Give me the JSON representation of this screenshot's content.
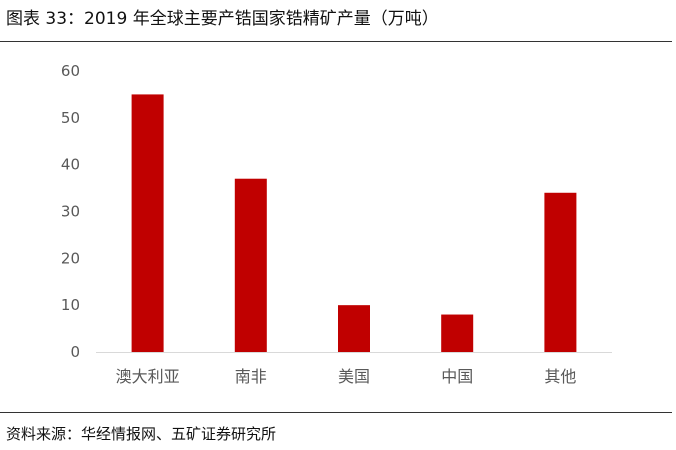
{
  "figure": {
    "title": "图表 33：2019 年全球主要产锆国家锆精矿产量（万吨）",
    "source": "资料来源：华经情报网、五矿证券研究所"
  },
  "colors": {
    "bar": "#c00000",
    "axis": "#d9d9d9",
    "text": "#595959"
  },
  "chart_data": {
    "type": "bar",
    "categories": [
      "澳大利亚",
      "南非",
      "美国",
      "中国",
      "其他"
    ],
    "values": [
      55,
      37,
      10,
      8,
      34
    ],
    "title": "",
    "xlabel": "",
    "ylabel": "",
    "ylim": [
      0,
      60
    ],
    "yticks": [
      0,
      10,
      20,
      30,
      40,
      50,
      60
    ],
    "grid": false,
    "legend": "none"
  }
}
